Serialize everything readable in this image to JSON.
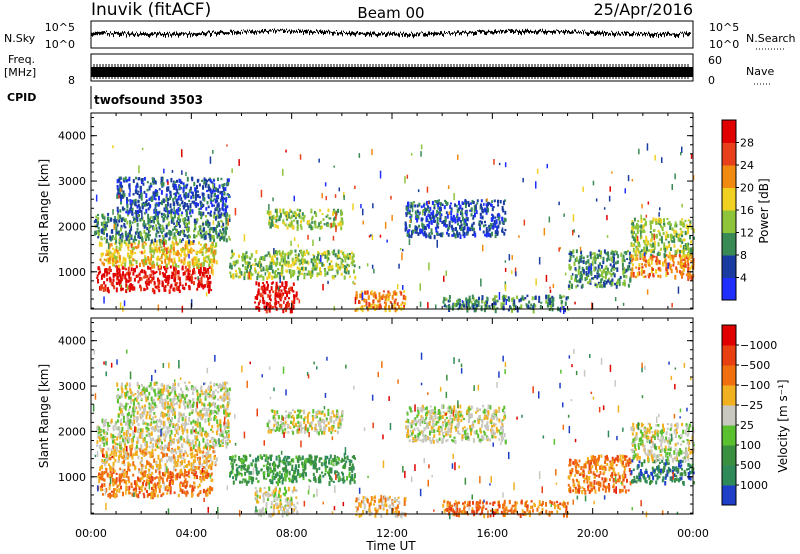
{
  "header": {
    "station": "Inuvik (fitACF)",
    "beam": "Beam 00",
    "date": "25/Apr/2016"
  },
  "side_labels": {
    "nsky": "N.Sky",
    "nsearch": "N.Search",
    "freq": "Freq.",
    "freq_unit": "[MHz]",
    "nave": "Nave",
    "cpid": "CPID",
    "cpid_value": "twofsound 3503",
    "nsky_tick_top": "10^5",
    "nsky_tick_bot": "10^0",
    "freq_tick_top": "",
    "freq_tick_bot": "8",
    "nave_tick_top": "60",
    "nave_tick_bot": "0"
  },
  "chart_data": [
    {
      "type": "heatmap",
      "title": "",
      "ylabel": "Slant Range [km]",
      "xlabel": "Time UT",
      "x_ticks": [
        "00:00",
        "04:00",
        "08:00",
        "12:00",
        "16:00",
        "20:00",
        "00:00"
      ],
      "y_ticks": [
        1000,
        2000,
        3000,
        4000
      ],
      "ylim": [
        180,
        4500
      ],
      "xlim_hours": [
        0,
        24
      ],
      "colorbar": {
        "label": "Power [dB]",
        "ticks": [
          "4",
          "8",
          "12",
          "16",
          "20",
          "24",
          "28"
        ],
        "colors": [
          "#1f2fff",
          "#1a3ca0",
          "#3a8a56",
          "#8ec43a",
          "#f0d020",
          "#f08a10",
          "#e8401a",
          "#e00000"
        ]
      },
      "features": [
        {
          "t0": 0.2,
          "t1": 4.8,
          "r0": 600,
          "r1": 1150,
          "level": 7
        },
        {
          "t0": 0.3,
          "t1": 5.0,
          "r0": 1150,
          "r1": 1700,
          "level": 4
        },
        {
          "t0": 0.1,
          "t1": 5.5,
          "r0": 1700,
          "r1": 2300,
          "level": 2
        },
        {
          "t0": 1.0,
          "t1": 5.5,
          "r0": 2300,
          "r1": 3100,
          "level": 1
        },
        {
          "t0": 5.5,
          "t1": 10.5,
          "r0": 900,
          "r1": 1500,
          "level": 3
        },
        {
          "t0": 6.5,
          "t1": 8.2,
          "r0": 180,
          "r1": 800,
          "level": 7
        },
        {
          "t0": 7.0,
          "t1": 10.0,
          "r0": 2000,
          "r1": 2400,
          "level": 3
        },
        {
          "t0": 10.5,
          "t1": 12.5,
          "r0": 180,
          "r1": 600,
          "level": 5
        },
        {
          "t0": 12.5,
          "t1": 16.5,
          "r0": 1800,
          "r1": 2600,
          "level": 1
        },
        {
          "t0": 14.0,
          "t1": 19.0,
          "r0": 180,
          "r1": 500,
          "level": 2
        },
        {
          "t0": 19.0,
          "t1": 21.5,
          "r0": 700,
          "r1": 1500,
          "level": 2
        },
        {
          "t0": 21.5,
          "t1": 24.0,
          "r0": 900,
          "r1": 1400,
          "level": 5
        },
        {
          "t0": 21.5,
          "t1": 24.0,
          "r0": 1400,
          "r1": 2200,
          "level": 3
        }
      ]
    },
    {
      "type": "heatmap",
      "title": "",
      "ylabel": "Slant Range [km]",
      "xlabel": "Time UT",
      "x_ticks": [
        "00:00",
        "04:00",
        "08:00",
        "12:00",
        "16:00",
        "20:00",
        "00:00"
      ],
      "y_ticks": [
        1000,
        2000,
        3000,
        4000
      ],
      "ylim": [
        180,
        4500
      ],
      "xlim_hours": [
        0,
        24
      ],
      "colorbar": {
        "label": "Velocity [m s⁻¹]",
        "ticks": [
          "1000",
          "500",
          "100",
          "25",
          "−25",
          "−100",
          "−500",
          "−1000"
        ],
        "colors": [
          "#1f3fc8",
          "#2f8a5a",
          "#3a9040",
          "#5ac030",
          "#c8c8c0",
          "#f0b020",
          "#f07010",
          "#e84010",
          "#e00000"
        ]
      },
      "features": [
        {
          "t0": 0.2,
          "t1": 4.8,
          "r0": 600,
          "r1": 1150,
          "level": 6
        },
        {
          "t0": 0.3,
          "t1": 5.0,
          "r0": 1150,
          "r1": 1700,
          "level": 5
        },
        {
          "t0": 0.2,
          "t1": 5.5,
          "r0": 1700,
          "r1": 2300,
          "level": 4
        },
        {
          "t0": 1.0,
          "t1": 5.5,
          "r0": 2300,
          "r1": 3100,
          "level": 4
        },
        {
          "t0": 5.5,
          "t1": 10.5,
          "r0": 900,
          "r1": 1500,
          "level": 2
        },
        {
          "t0": 6.5,
          "t1": 8.2,
          "r0": 180,
          "r1": 800,
          "level": 4
        },
        {
          "t0": 7.0,
          "t1": 10.0,
          "r0": 2000,
          "r1": 2500,
          "level": 4
        },
        {
          "t0": 10.5,
          "t1": 12.5,
          "r0": 180,
          "r1": 600,
          "level": 5
        },
        {
          "t0": 12.5,
          "t1": 16.5,
          "r0": 1800,
          "r1": 2600,
          "level": 4
        },
        {
          "t0": 14.0,
          "t1": 19.0,
          "r0": 180,
          "r1": 500,
          "level": 6
        },
        {
          "t0": 19.0,
          "t1": 21.5,
          "r0": 700,
          "r1": 1500,
          "level": 6
        },
        {
          "t0": 21.5,
          "t1": 24.0,
          "r0": 900,
          "r1": 1400,
          "level": 1
        },
        {
          "t0": 21.5,
          "t1": 24.0,
          "r0": 1400,
          "r1": 2200,
          "level": 4
        }
      ]
    }
  ]
}
